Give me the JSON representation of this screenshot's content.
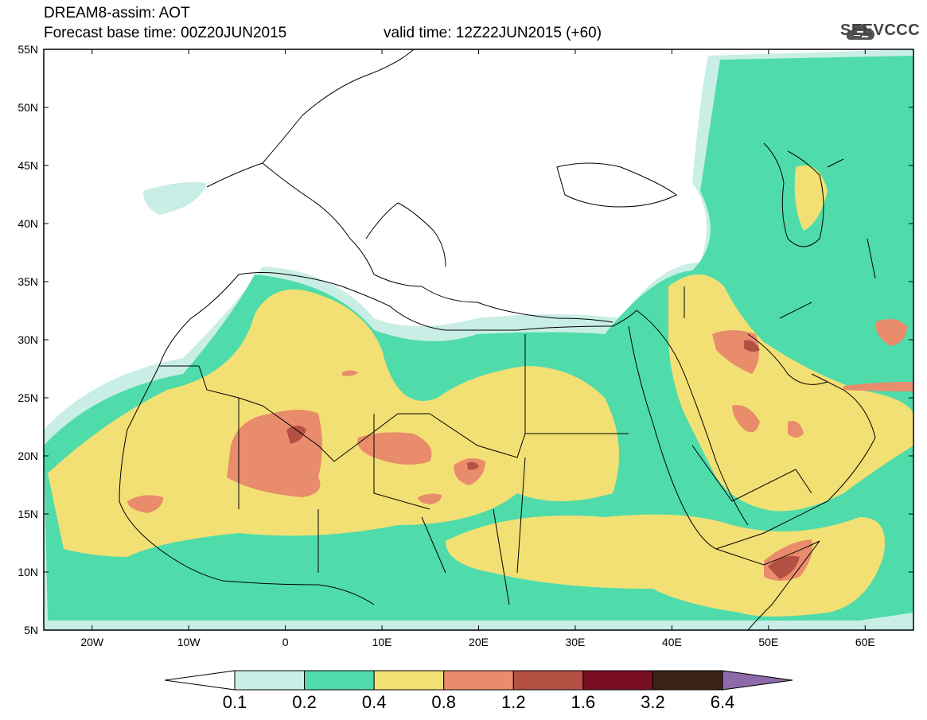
{
  "header": {
    "title_line1": "DREAM8-assim: AOT",
    "base_time": "Forecast base time: 00Z20JUN2015",
    "valid_time": "valid time: 12Z22JUN2015 (+60)",
    "logo_text": "SEEVCCC"
  },
  "axes": {
    "lat_labels": [
      "55N",
      "50N",
      "45N",
      "40N",
      "35N",
      "30N",
      "25N",
      "20N",
      "15N",
      "10N",
      "5N"
    ],
    "lon_labels": [
      "20W",
      "10W",
      "0",
      "10E",
      "20E",
      "30E",
      "40E",
      "50E",
      "60E"
    ]
  },
  "colorbar": {
    "labels": [
      "0.1",
      "0.2",
      "0.4",
      "0.8",
      "1.2",
      "1.6",
      "3.2",
      "6.4"
    ],
    "colors": [
      "#ffffff",
      "#c8eee6",
      "#4fdcaa",
      "#f3e074",
      "#e88c6c",
      "#b44f44",
      "#7a0f24",
      "#3a2416",
      "#8e6aa8"
    ]
  }
}
